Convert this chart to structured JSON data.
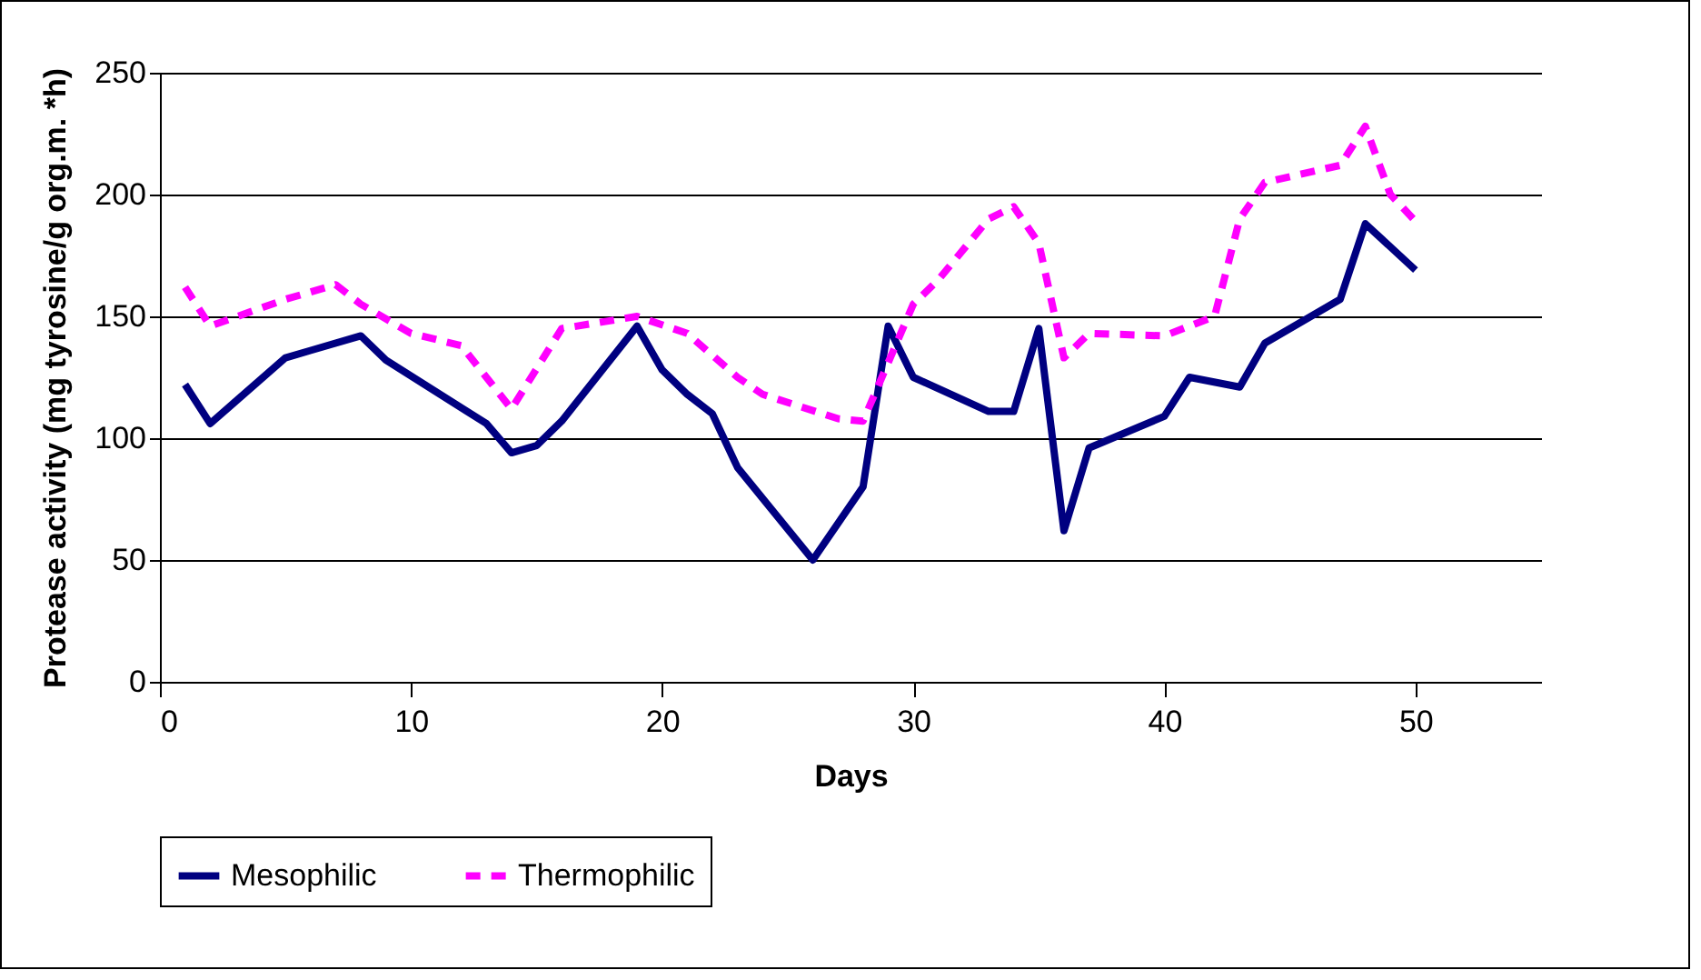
{
  "chart_data": {
    "type": "line",
    "xlabel": "Days",
    "ylabel": "Protease activity (mg tyrosine/g org.m. *h)",
    "xlim": [
      0,
      55
    ],
    "xticks": [
      0,
      10,
      20,
      30,
      40,
      50
    ],
    "ylim": [
      0,
      250
    ],
    "yticks": [
      0,
      50,
      100,
      150,
      200,
      250
    ],
    "grid": "y",
    "legend": "bottom",
    "series": [
      {
        "name": "Mesophilic",
        "color": "#000080",
        "line_style": "solid",
        "x": [
          1,
          2,
          5,
          6,
          8,
          9,
          13,
          14,
          15,
          16,
          19,
          20,
          21,
          22,
          23,
          26,
          28,
          29,
          30,
          33,
          34,
          35,
          36,
          37,
          40,
          41,
          43,
          44,
          47,
          48,
          50
        ],
        "values": [
          122,
          106,
          133,
          136,
          142,
          132,
          106,
          94,
          97,
          107,
          146,
          128,
          118,
          110,
          88,
          50,
          80,
          146,
          125,
          111,
          111,
          145,
          62,
          96,
          109,
          125,
          121,
          139,
          157,
          188,
          169
        ]
      },
      {
        "name": "Thermophilic",
        "color": "#ff00ff",
        "line_style": "dashed",
        "x": [
          1,
          2,
          5,
          7,
          8,
          10,
          12,
          14,
          16,
          19,
          21,
          23,
          24,
          27,
          28,
          30,
          31,
          33,
          34,
          35,
          36,
          37,
          40,
          42,
          43,
          44,
          47,
          48,
          49,
          50
        ],
        "values": [
          162,
          146,
          157,
          163,
          155,
          143,
          138,
          112,
          145,
          150,
          143,
          125,
          118,
          108,
          107,
          155,
          165,
          190,
          195,
          180,
          133,
          143,
          142,
          150,
          190,
          205,
          212,
          228,
          200,
          189
        ]
      }
    ]
  }
}
